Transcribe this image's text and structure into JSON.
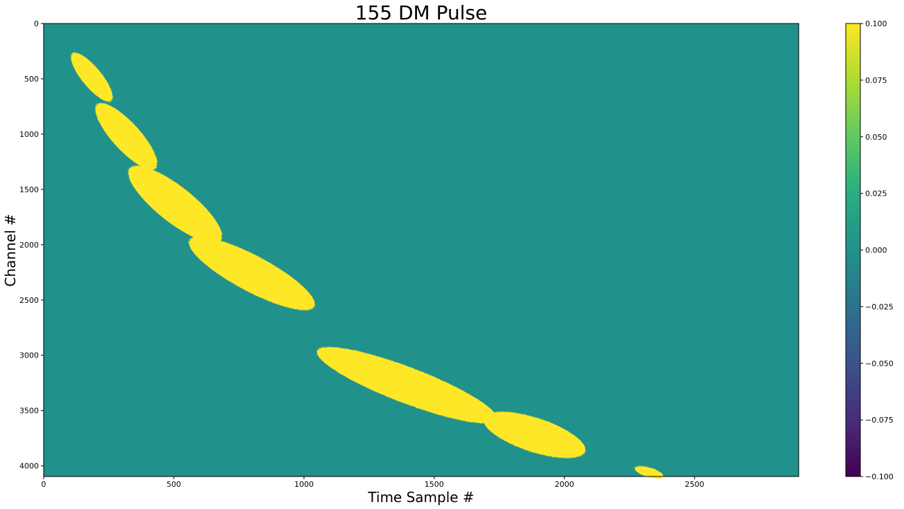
{
  "chart_data": {
    "type": "heatmap",
    "title": "155 DM Pulse",
    "xlabel": "Time Sample #",
    "ylabel": "Channel #",
    "xlim": [
      0,
      2900
    ],
    "ylim": [
      4096,
      0
    ],
    "x_ticks": [
      0,
      500,
      1000,
      1500,
      2000,
      2500
    ],
    "y_ticks": [
      0,
      500,
      1000,
      1500,
      2000,
      2500,
      3000,
      3500,
      4000
    ],
    "colormap": "viridis",
    "background_value": 0.0,
    "pulse_value": 0.1,
    "colorbar": {
      "range": [
        -0.1,
        0.1
      ],
      "ticks": [
        "0.100",
        "0.075",
        "0.050",
        "0.025",
        "0.000",
        "−0.025",
        "−0.050",
        "−0.075",
        "−0.100"
      ]
    },
    "pulse_segments": [
      {
        "time_start": 110,
        "time_end": 260,
        "channel_start": 270,
        "channel_end": 700
      },
      {
        "time_start": 205,
        "time_end": 430,
        "channel_start": 730,
        "channel_end": 1310
      },
      {
        "time_start": 330,
        "time_end": 680,
        "channel_start": 1310,
        "channel_end": 1960
      },
      {
        "time_start": 560,
        "time_end": 1040,
        "channel_start": 1960,
        "channel_end": 2560
      },
      {
        "time_start": 1050,
        "time_end": 1740,
        "channel_start": 2960,
        "channel_end": 3580
      },
      {
        "time_start": 1690,
        "time_end": 2080,
        "channel_start": 3570,
        "channel_end": 3870
      },
      {
        "time_start": 2270,
        "time_end": 2380,
        "channel_start": 4020,
        "channel_end": 4096
      }
    ],
    "grid": false
  }
}
